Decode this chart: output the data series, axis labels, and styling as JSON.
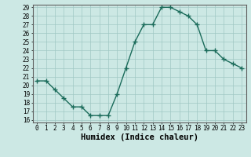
{
  "xlabel": "Humidex (Indice chaleur)",
  "x": [
    0,
    1,
    2,
    3,
    4,
    5,
    6,
    7,
    8,
    9,
    10,
    11,
    12,
    13,
    14,
    15,
    16,
    17,
    18,
    19,
    20,
    21,
    22,
    23
  ],
  "y": [
    20.5,
    20.5,
    19.5,
    18.5,
    17.5,
    17.5,
    16.5,
    16.5,
    16.5,
    19.0,
    22.0,
    25.0,
    27.0,
    27.0,
    29.0,
    29.0,
    28.5,
    28.0,
    27.0,
    24.0,
    24.0,
    23.0,
    22.5,
    22.0
  ],
  "ylim_min": 15.7,
  "ylim_max": 29.3,
  "xlim_min": -0.5,
  "xlim_max": 23.5,
  "yticks": [
    16,
    17,
    18,
    19,
    20,
    21,
    22,
    23,
    24,
    25,
    26,
    27,
    28,
    29
  ],
  "xticks": [
    0,
    1,
    2,
    3,
    4,
    5,
    6,
    7,
    8,
    9,
    10,
    11,
    12,
    13,
    14,
    15,
    16,
    17,
    18,
    19,
    20,
    21,
    22,
    23
  ],
  "line_color": "#1a6b5a",
  "marker": "+",
  "marker_size": 4,
  "bg_color": "#cce8e4",
  "grid_color": "#a0c8c4",
  "tick_label_fontsize": 5.5,
  "xlabel_fontsize": 7.5,
  "linewidth": 1.0
}
